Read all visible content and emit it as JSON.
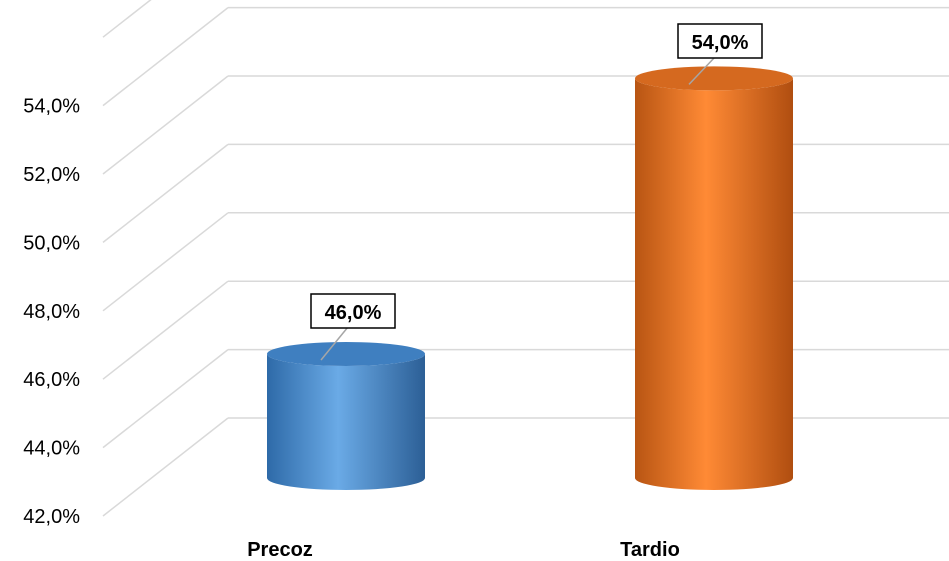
{
  "chart_data": {
    "type": "bar",
    "style": "3d-cylinder",
    "categories": [
      "Precoz",
      "Tardio"
    ],
    "values": [
      46.0,
      54.0
    ],
    "value_labels": [
      "46,0%",
      "54,0%"
    ],
    "colors": [
      "#5b9bd5",
      "#ed7d31"
    ],
    "title": "",
    "xlabel": "",
    "ylabel": "",
    "ylim": [
      42,
      56
    ],
    "ticks": [
      42,
      44,
      46,
      48,
      50,
      52,
      54
    ],
    "tick_labels": [
      "42,0%",
      "44,0%",
      "46,0%",
      "48,0%",
      "50,0%",
      "52,0%",
      "54,0%"
    ],
    "grid": true,
    "legend": "none"
  }
}
